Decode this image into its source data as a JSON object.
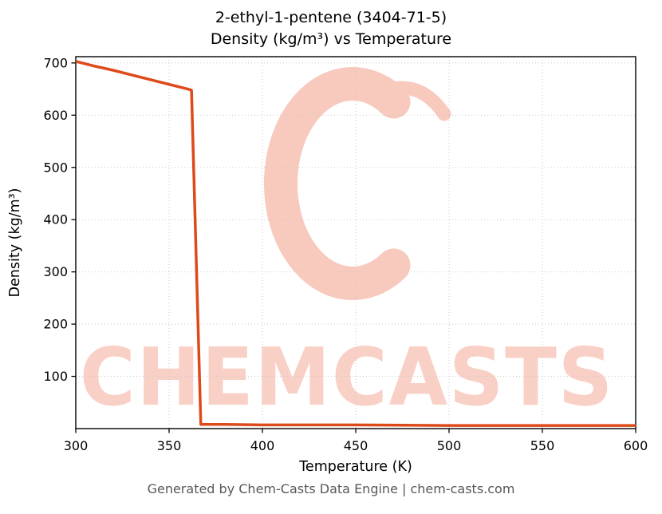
{
  "figure": {
    "footer": "Generated by Chem-Casts Data Engine | chem-casts.com"
  },
  "chart_data": {
    "type": "line",
    "title": "2-ethyl-1-pentene (3404-71-5)",
    "subtitle": "Density (kg/m³) vs Temperature",
    "xlabel": "Temperature (K)",
    "ylabel": "Density (kg/m³)",
    "xlim": [
      300,
      600
    ],
    "ylim": [
      0,
      712
    ],
    "xticks": [
      300,
      350,
      400,
      450,
      500,
      550,
      600
    ],
    "yticks": [
      100,
      200,
      300,
      400,
      500,
      600,
      700
    ],
    "grid": true,
    "grid_style": "dotted",
    "grid_color": "#c9c9c9",
    "line_color": "#dd4a1a",
    "line_width": 3.5,
    "series": [
      {
        "name": "density",
        "x": [
          300,
          310,
          320,
          330,
          340,
          350,
          360,
          362,
          367,
          380,
          400,
          450,
          500,
          550,
          600
        ],
        "y": [
          703,
          694,
          686,
          677,
          668,
          659,
          650,
          648,
          8,
          8,
          7,
          7,
          6,
          6,
          6
        ]
      }
    ],
    "watermark": {
      "text": "CHEMCASTS",
      "color": "#f9d0c6",
      "logo_color": "#f8c9bd"
    }
  }
}
